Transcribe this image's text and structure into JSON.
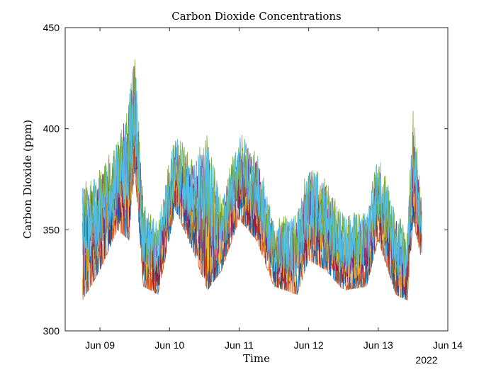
{
  "chart_data": {
    "type": "line",
    "title": "Carbon Dioxide Concentrations",
    "xlabel": "Time",
    "ylabel": "Carbon Dioxide (ppm)",
    "x_axis_type": "datetime",
    "x_tick_labels": [
      "Jun 09",
      "Jun 10",
      "Jun 11",
      "Jun 12",
      "Jun 13",
      "Jun 14"
    ],
    "x_tick_dates": [
      "2022-06-09",
      "2022-06-10",
      "2022-06-11",
      "2022-06-12",
      "2022-06-13",
      "2022-06-14"
    ],
    "x_secondary_label": "2022",
    "xlim": [
      "2022-06-08 12:00",
      "2022-06-14 00:00"
    ],
    "ylim": [
      300,
      450
    ],
    "y_ticks": [
      300,
      350,
      400,
      450
    ],
    "grid": false,
    "legend": "none",
    "data_start": "2022-06-08 18:00",
    "data_end": "2022-06-13 15:00",
    "series_colors": [
      "#0072BD",
      "#D95319",
      "#EDB120",
      "#7E2F8E",
      "#77AC30",
      "#4DBEEE",
      "#A2142F"
    ],
    "approx_upper_envelope": [
      [
        "2022-06-08 18:00",
        375
      ],
      [
        "2022-06-09 00:00",
        380
      ],
      [
        "2022-06-09 06:00",
        395
      ],
      [
        "2022-06-09 10:00",
        420
      ],
      [
        "2022-06-09 12:00",
        440
      ],
      [
        "2022-06-09 15:00",
        365
      ],
      [
        "2022-06-09 20:00",
        355
      ],
      [
        "2022-06-10 02:00",
        400
      ],
      [
        "2022-06-10 08:00",
        385
      ],
      [
        "2022-06-10 13:00",
        400
      ],
      [
        "2022-06-10 18:00",
        365
      ],
      [
        "2022-06-11 00:00",
        400
      ],
      [
        "2022-06-11 06:00",
        390
      ],
      [
        "2022-06-11 12:00",
        355
      ],
      [
        "2022-06-11 20:00",
        360
      ],
      [
        "2022-06-12 00:00",
        385
      ],
      [
        "2022-06-12 06:00",
        375
      ],
      [
        "2022-06-12 12:00",
        360
      ],
      [
        "2022-06-12 20:00",
        360
      ],
      [
        "2022-06-13 00:00",
        390
      ],
      [
        "2022-06-13 06:00",
        360
      ],
      [
        "2022-06-13 10:00",
        350
      ],
      [
        "2022-06-13 12:00",
        412
      ],
      [
        "2022-06-13 15:00",
        365
      ]
    ],
    "approx_lower_envelope": [
      [
        "2022-06-08 18:00",
        315
      ],
      [
        "2022-06-09 00:00",
        330
      ],
      [
        "2022-06-09 06:00",
        350
      ],
      [
        "2022-06-09 10:00",
        345
      ],
      [
        "2022-06-09 12:00",
        380
      ],
      [
        "2022-06-09 15:00",
        322
      ],
      [
        "2022-06-09 20:00",
        318
      ],
      [
        "2022-06-10 02:00",
        360
      ],
      [
        "2022-06-10 08:00",
        340
      ],
      [
        "2022-06-10 13:00",
        320
      ],
      [
        "2022-06-10 18:00",
        330
      ],
      [
        "2022-06-11 00:00",
        355
      ],
      [
        "2022-06-11 06:00",
        345
      ],
      [
        "2022-06-11 12:00",
        322
      ],
      [
        "2022-06-11 20:00",
        318
      ],
      [
        "2022-06-12 00:00",
        335
      ],
      [
        "2022-06-12 06:00",
        330
      ],
      [
        "2022-06-12 12:00",
        320
      ],
      [
        "2022-06-12 20:00",
        322
      ],
      [
        "2022-06-13 00:00",
        345
      ],
      [
        "2022-06-13 06:00",
        318
      ],
      [
        "2022-06-13 10:00",
        315
      ],
      [
        "2022-06-13 12:00",
        355
      ],
      [
        "2022-06-13 15:00",
        335
      ]
    ]
  }
}
